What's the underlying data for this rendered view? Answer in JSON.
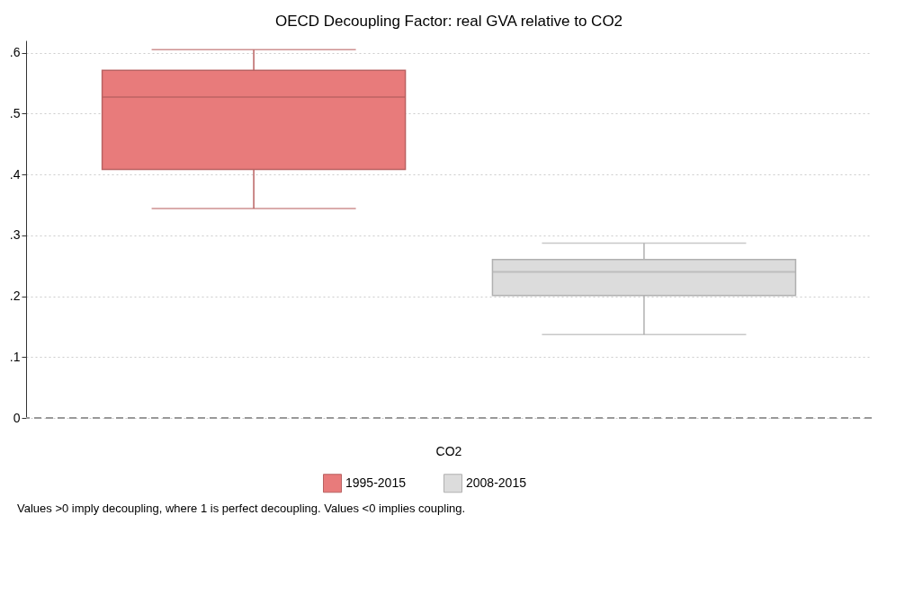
{
  "chart_data": {
    "type": "box",
    "title": "OECD Decoupling Factor: real GVA relative to CO2",
    "categories": [
      "CO2"
    ],
    "series": [
      {
        "name": "1995-2015",
        "color": "#e87b7b",
        "boxes": [
          {
            "low": 0.344,
            "q1": 0.408,
            "median": 0.527,
            "q3": 0.571,
            "high": 0.605
          }
        ]
      },
      {
        "name": "2008-2015",
        "color": "#dcdcdc",
        "boxes": [
          {
            "low": 0.137,
            "q1": 0.201,
            "median": 0.24,
            "q3": 0.26,
            "high": 0.287
          }
        ]
      }
    ],
    "ylim": [
      0,
      0.62
    ],
    "yticks": [
      {
        "value": 0,
        "label": "0"
      },
      {
        "value": 0.1,
        "label": ".1"
      },
      {
        "value": 0.2,
        "label": ".2"
      },
      {
        "value": 0.3,
        "label": ".3"
      },
      {
        "value": 0.4,
        "label": ".4"
      },
      {
        "value": 0.5,
        "label": ".5"
      },
      {
        "value": 0.6,
        "label": ".6"
      }
    ],
    "ref_lines": [
      {
        "axis": "y",
        "value": 0,
        "color": "#999999",
        "line_style": "dashed"
      }
    ],
    "grid": "y",
    "legend": "bottom",
    "annotations": [
      "Values >0 imply decoupling, where 1 is perfect decoupling. Values <0 implies coupling."
    ]
  }
}
